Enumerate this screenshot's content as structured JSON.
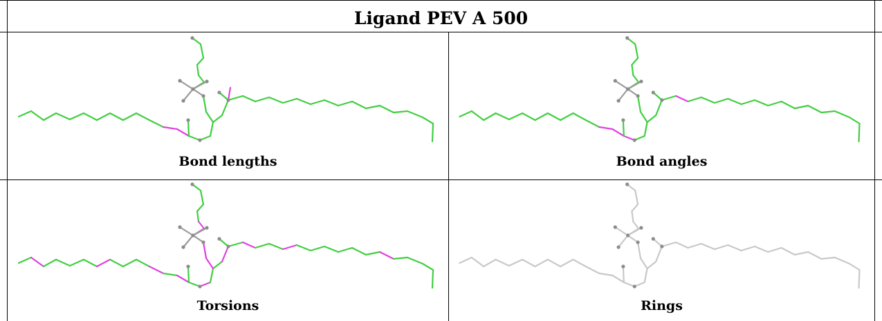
{
  "title": "Ligand PEV A 500",
  "colors": {
    "green": "#3fcf3f",
    "magenta": "#e040e0",
    "gray": "#c8c8c8",
    "atom": "#8c8c8c"
  },
  "panels": [
    {
      "caption": "Bond lengths",
      "scheme": "bondlengths"
    },
    {
      "caption": "Bond angles",
      "scheme": "bondangles"
    },
    {
      "caption": "Torsions",
      "scheme": "torsions"
    },
    {
      "caption": "Rings",
      "scheme": "rings"
    }
  ]
}
